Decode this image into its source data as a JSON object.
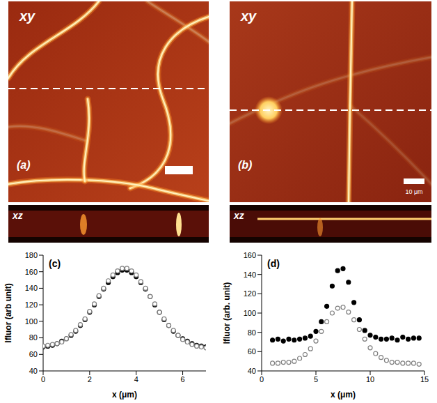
{
  "images": [
    {
      "label": "(a)",
      "views": [
        "xy",
        "xz"
      ]
    },
    {
      "label": "(b)",
      "views": [
        "xy",
        "xz"
      ],
      "scale_bar": "10 μm"
    }
  ],
  "chart_data": [
    {
      "type": "scatter",
      "annotations": [
        "(c)"
      ],
      "x_label": "x (μm)",
      "y_label": "Ifluor (arb unit)",
      "x": [
        0,
        0.2,
        0.4,
        0.6,
        0.8,
        1.0,
        1.2,
        1.4,
        1.6,
        1.8,
        2.0,
        2.2,
        2.4,
        2.6,
        2.8,
        3.0,
        3.2,
        3.4,
        3.6,
        3.8,
        4.0,
        4.2,
        4.4,
        4.6,
        4.8,
        5.0,
        5.2,
        5.4,
        5.6,
        5.8,
        6.0,
        6.2,
        6.4,
        6.6,
        6.8,
        7.0
      ],
      "series": [
        {
          "color": "#000000",
          "marker": "filled_circle",
          "values": [
            69,
            70,
            71,
            73,
            76,
            79,
            83,
            88,
            95,
            102,
            111,
            120,
            130,
            139,
            147,
            154,
            159,
            162,
            162,
            159,
            154,
            147,
            139,
            130,
            120,
            111,
            102,
            95,
            88,
            83,
            79,
            76,
            73,
            71,
            70,
            69
          ]
        },
        {
          "color": "#808080",
          "marker": "open_circle",
          "values": [
            70,
            71,
            72,
            73,
            75,
            79,
            84,
            89,
            96,
            103,
            112,
            121,
            131,
            140,
            149,
            156,
            161,
            164,
            164,
            161,
            156,
            148,
            140,
            130,
            121,
            111,
            103,
            95,
            89,
            83,
            78,
            75,
            72,
            70,
            69,
            68
          ]
        }
      ],
      "xlim": [
        0,
        7
      ],
      "xticks": [
        0,
        2,
        4,
        6
      ],
      "ylim": [
        40,
        180
      ],
      "yticks": [
        40,
        60,
        80,
        100,
        120,
        140,
        160,
        180
      ],
      "grid": false
    },
    {
      "type": "scatter",
      "annotations": [
        "(d)"
      ],
      "x_label": "x (μm)",
      "y_label": "Ifluor (arb. unit)",
      "x": [
        1,
        1.5,
        2,
        2.5,
        3,
        3.5,
        4,
        4.5,
        5,
        5.5,
        6,
        6.5,
        7,
        7.5,
        8,
        8.5,
        9,
        9.5,
        10,
        10.5,
        11,
        11.5,
        12,
        12.5,
        13,
        13.5,
        14,
        14.5
      ],
      "series": [
        {
          "color": "#000000",
          "marker": "filled_circle",
          "values": [
            72,
            73,
            71,
            73,
            72,
            73,
            74,
            76,
            81,
            91,
            107,
            128,
            144,
            146,
            132,
            111,
            93,
            82,
            77,
            75,
            73,
            73,
            74,
            72,
            75,
            73,
            74,
            74
          ]
        },
        {
          "color": "#808080",
          "marker": "open_circle",
          "values": [
            48,
            48,
            49,
            49,
            50,
            53,
            57,
            63,
            71,
            81,
            91,
            100,
            105,
            106,
            101,
            93,
            83,
            73,
            64,
            58,
            54,
            51,
            49,
            49,
            48,
            48,
            48,
            47
          ]
        }
      ],
      "xlim": [
        0,
        15
      ],
      "xticks": [
        0,
        5,
        10,
        15
      ],
      "ylim": [
        40,
        160
      ],
      "yticks": [
        40,
        60,
        80,
        100,
        120,
        140,
        160
      ],
      "grid": false
    }
  ]
}
